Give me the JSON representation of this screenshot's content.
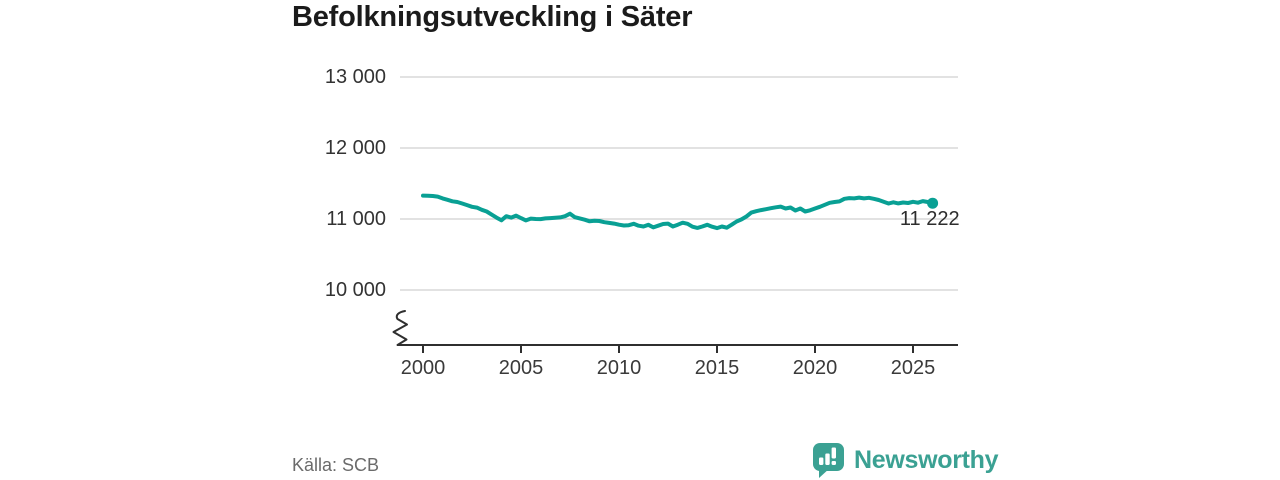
{
  "title": "Befolkningsutveckling i Säter",
  "source": "Källa: SCB",
  "logo": {
    "text": "Newsworthy",
    "color": "#3ba193"
  },
  "chart_data": {
    "type": "line",
    "title": "Befolkningsutveckling i Säter",
    "xlabel": "",
    "ylabel": "",
    "grid": "horizontal-only",
    "axis_break": true,
    "legend": "none",
    "line_color": "#09a094",
    "gridline_color": "#d9d9d9",
    "axis_color": "#2f2f2f",
    "x_range": [
      2000,
      2027.4
    ],
    "y_range": [
      10000,
      13000
    ],
    "x_ticks": [
      2000,
      2005,
      2010,
      2015,
      2020,
      2025
    ],
    "y_ticks": [
      {
        "value": 13000,
        "label": "13 000"
      },
      {
        "value": 12000,
        "label": "12 000"
      },
      {
        "value": 11000,
        "label": "11 000"
      },
      {
        "value": 10000,
        "label": "10 000"
      }
    ],
    "annotation": {
      "text": "11 222",
      "value": 11222,
      "x": 2026
    },
    "series": [
      {
        "name": "Befolkning",
        "points": [
          [
            2000.0,
            11330
          ],
          [
            2000.25,
            11328
          ],
          [
            2000.5,
            11324
          ],
          [
            2000.75,
            11315
          ],
          [
            2001.0,
            11290
          ],
          [
            2001.25,
            11270
          ],
          [
            2001.5,
            11250
          ],
          [
            2001.75,
            11240
          ],
          [
            2002.0,
            11218
          ],
          [
            2002.25,
            11196
          ],
          [
            2002.5,
            11172
          ],
          [
            2002.75,
            11160
          ],
          [
            2003.0,
            11130
          ],
          [
            2003.25,
            11106
          ],
          [
            2003.5,
            11062
          ],
          [
            2003.75,
            11020
          ],
          [
            2004.0,
            10982
          ],
          [
            2004.25,
            11040
          ],
          [
            2004.5,
            11020
          ],
          [
            2004.75,
            11048
          ],
          [
            2005.0,
            11012
          ],
          [
            2005.25,
            10980
          ],
          [
            2005.5,
            11005
          ],
          [
            2005.75,
            11000
          ],
          [
            2006.0,
            10998
          ],
          [
            2006.25,
            11008
          ],
          [
            2006.5,
            11012
          ],
          [
            2006.75,
            11018
          ],
          [
            2007.0,
            11022
          ],
          [
            2007.25,
            11040
          ],
          [
            2007.5,
            11075
          ],
          [
            2007.75,
            11025
          ],
          [
            2008.0,
            11008
          ],
          [
            2008.25,
            10990
          ],
          [
            2008.5,
            10968
          ],
          [
            2008.75,
            10975
          ],
          [
            2009.0,
            10972
          ],
          [
            2009.25,
            10955
          ],
          [
            2009.5,
            10945
          ],
          [
            2009.75,
            10935
          ],
          [
            2010.0,
            10920
          ],
          [
            2010.25,
            10908
          ],
          [
            2010.5,
            10912
          ],
          [
            2010.75,
            10932
          ],
          [
            2011.0,
            10905
          ],
          [
            2011.25,
            10895
          ],
          [
            2011.5,
            10918
          ],
          [
            2011.75,
            10882
          ],
          [
            2012.0,
            10905
          ],
          [
            2012.25,
            10930
          ],
          [
            2012.5,
            10935
          ],
          [
            2012.75,
            10895
          ],
          [
            2013.0,
            10920
          ],
          [
            2013.25,
            10948
          ],
          [
            2013.5,
            10932
          ],
          [
            2013.75,
            10892
          ],
          [
            2014.0,
            10875
          ],
          [
            2014.25,
            10895
          ],
          [
            2014.5,
            10918
          ],
          [
            2014.75,
            10892
          ],
          [
            2015.0,
            10872
          ],
          [
            2015.25,
            10895
          ],
          [
            2015.5,
            10878
          ],
          [
            2015.75,
            10920
          ],
          [
            2016.0,
            10965
          ],
          [
            2016.25,
            10995
          ],
          [
            2016.5,
            11035
          ],
          [
            2016.75,
            11090
          ],
          [
            2017.0,
            11110
          ],
          [
            2017.25,
            11125
          ],
          [
            2017.5,
            11138
          ],
          [
            2017.75,
            11152
          ],
          [
            2018.0,
            11165
          ],
          [
            2018.25,
            11175
          ],
          [
            2018.5,
            11148
          ],
          [
            2018.75,
            11162
          ],
          [
            2019.0,
            11120
          ],
          [
            2019.25,
            11148
          ],
          [
            2019.5,
            11105
          ],
          [
            2019.75,
            11122
          ],
          [
            2020.0,
            11148
          ],
          [
            2020.25,
            11172
          ],
          [
            2020.5,
            11200
          ],
          [
            2020.75,
            11228
          ],
          [
            2021.0,
            11240
          ],
          [
            2021.25,
            11248
          ],
          [
            2021.5,
            11285
          ],
          [
            2021.75,
            11295
          ],
          [
            2022.0,
            11290
          ],
          [
            2022.25,
            11302
          ],
          [
            2022.5,
            11290
          ],
          [
            2022.75,
            11298
          ],
          [
            2023.0,
            11285
          ],
          [
            2023.25,
            11268
          ],
          [
            2023.5,
            11242
          ],
          [
            2023.75,
            11218
          ],
          [
            2024.0,
            11235
          ],
          [
            2024.25,
            11220
          ],
          [
            2024.5,
            11232
          ],
          [
            2024.75,
            11225
          ],
          [
            2025.0,
            11242
          ],
          [
            2025.25,
            11230
          ],
          [
            2025.5,
            11252
          ],
          [
            2025.75,
            11240
          ],
          [
            2026.0,
            11222
          ]
        ]
      }
    ]
  }
}
